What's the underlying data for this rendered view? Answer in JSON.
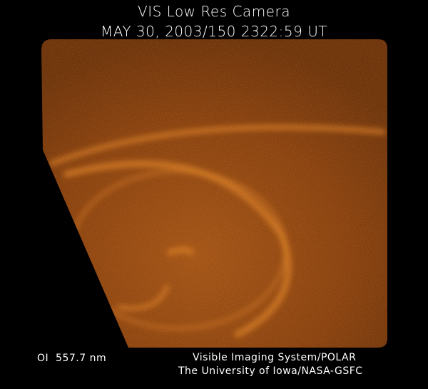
{
  "header": {
    "title": "VIS Low Res Camera",
    "timestamp": "MAY 30, 2003/150 2322:59 UT"
  },
  "image": {
    "subject": "auroral oval",
    "colors": {
      "base": "#7a3208",
      "glow": "#d9741c",
      "background": "#000000"
    }
  },
  "footer": {
    "wavelength": "OI  557.7 nm",
    "credit_line1": "Visible Imaging System/POLAR",
    "credit_line2": "The University of Iowa/NASA-GSFC"
  }
}
